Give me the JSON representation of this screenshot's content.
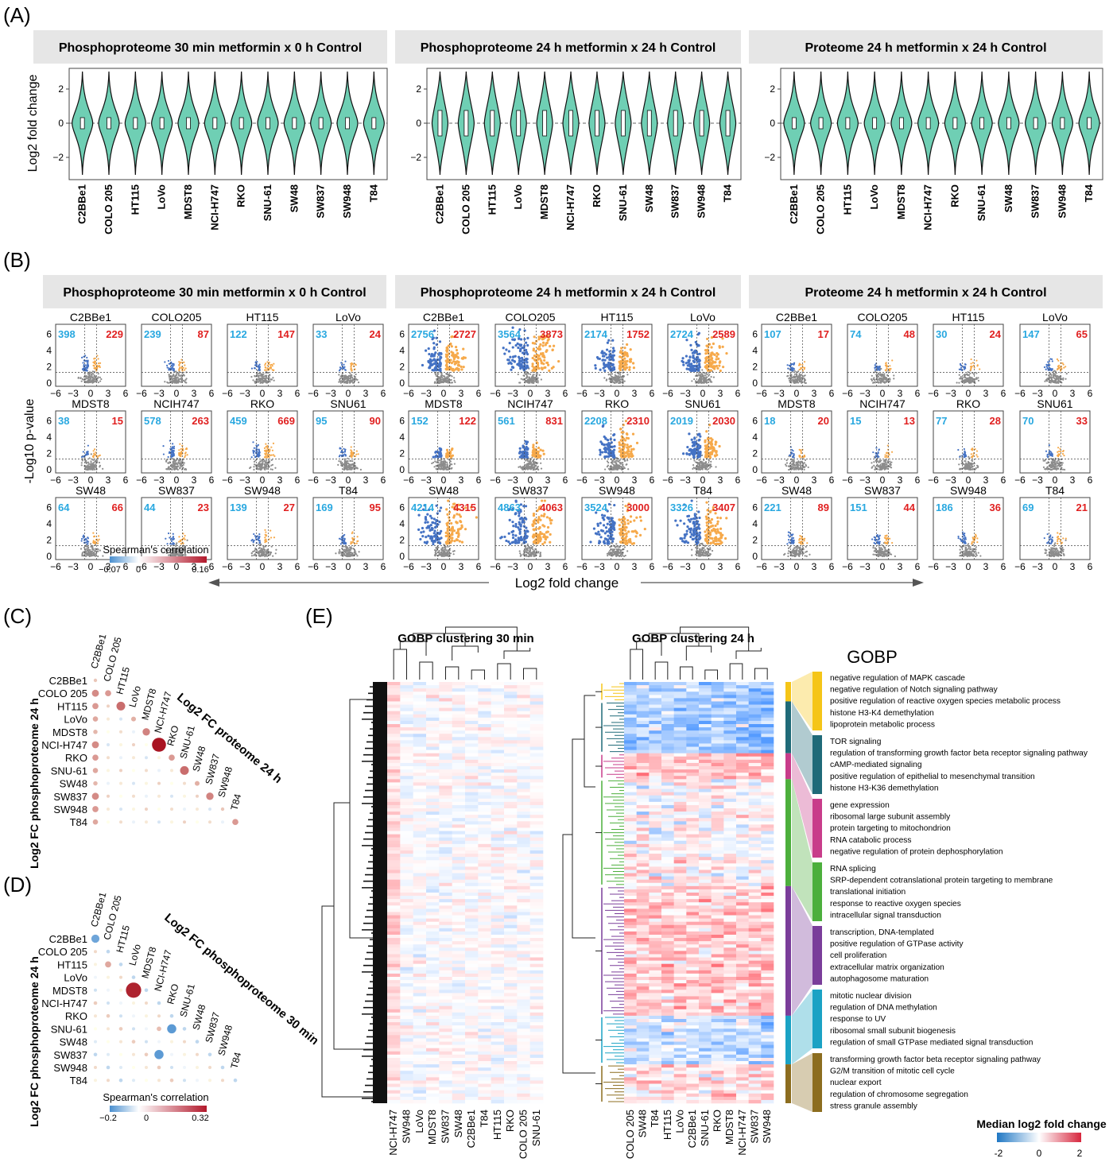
{
  "panel_labels": [
    "(A)",
    "(B)",
    "(C)",
    "(D)",
    "(E)"
  ],
  "panelA": {
    "facets": [
      "Phosphoproteome 30 min metformin x 0 h Control",
      "Phosphoproteome 24 h metformin x 24 h Control",
      "Proteome 24 h metformin x 24 h Control"
    ],
    "ylabel": "Log2 fold change",
    "yticks": [
      "2",
      "0",
      "−2"
    ],
    "cell_lines": [
      "C2BBe1",
      "COLO 205",
      "HT115",
      "LoVo",
      "MDST8",
      "NCI-H747",
      "RKO",
      "SNU-61",
      "SW48",
      "SW837",
      "SW948",
      "T84"
    ],
    "violin_color": "#6fcfb4"
  },
  "panelB": {
    "facets": [
      "Phosphoproteome 30 min metformin x 0 h Control",
      "Phosphoproteome 24 h metformin x 24 h Control",
      "Proteome 24 h metformin x 24 h Control"
    ],
    "cells": [
      "C2BBe1",
      "COLO205",
      "HT115",
      "LoVo",
      "MDST8",
      "NCIH747",
      "RKO",
      "SNU61",
      "SW48",
      "SW837",
      "SW948",
      "T84"
    ],
    "counts": [
      [
        [
          398,
          229
        ],
        [
          239,
          87
        ],
        [
          122,
          147
        ],
        [
          33,
          24
        ],
        [
          38,
          15
        ],
        [
          578,
          263
        ],
        [
          459,
          669
        ],
        [
          95,
          90
        ],
        [
          64,
          66
        ],
        [
          44,
          23
        ],
        [
          139,
          27
        ],
        [
          169,
          95
        ]
      ],
      [
        [
          2756,
          2727
        ],
        [
          3564,
          3873
        ],
        [
          2174,
          1752
        ],
        [
          2724,
          2589
        ],
        [
          152,
          122
        ],
        [
          561,
          831
        ],
        [
          2208,
          2310
        ],
        [
          2019,
          2030
        ],
        [
          4214,
          4315
        ],
        [
          4863,
          4063
        ],
        [
          3524,
          3000
        ],
        [
          3326,
          3407
        ]
      ],
      [
        [
          107,
          17
        ],
        [
          74,
          48
        ],
        [
          30,
          24
        ],
        [
          147,
          65
        ],
        [
          18,
          20
        ],
        [
          15,
          13
        ],
        [
          77,
          28
        ],
        [
          70,
          33
        ],
        [
          221,
          89
        ],
        [
          151,
          44
        ],
        [
          186,
          36
        ],
        [
          69,
          21
        ]
      ]
    ],
    "xticks": [
      "−6",
      "−3",
      "0",
      "3",
      "6"
    ],
    "yticks": [
      "6",
      "4",
      "2",
      "0"
    ],
    "ylabel": "-Log10 p-value",
    "xlabel": "Log2 fold change",
    "down_color": "#4472c4",
    "up_color": "#f6a94a",
    "ns_color": "#8c8c8c",
    "down_text_color": "#29a8e0",
    "up_text_color": "#e02020"
  },
  "panelC": {
    "row_labels": [
      "C2BBe1",
      "COLO 205",
      "HT115",
      "LoVo",
      "MDST8",
      "NCI-H747",
      "RKO",
      "SNU-61",
      "SW48",
      "SW837",
      "SW948",
      "T84"
    ],
    "col_labels": [
      "C2BBe1",
      "COLO 205",
      "HT115",
      "LoVo",
      "MDST8",
      "NCI-H747",
      "RKO",
      "SNU-61",
      "SW48",
      "SW837",
      "SW948",
      "T84"
    ],
    "row_axis": "Log2 FC phosphoproteome 24 h",
    "col_axis": "Log2 FC proteome 24 h",
    "legend_title": "Spearman's correlation",
    "legend_ticks": [
      "−0.07",
      "0",
      "0.16"
    ],
    "range": [
      -0.07,
      0.16
    ]
  },
  "panelD": {
    "row_labels": [
      "C2BBe1",
      "COLO 205",
      "HT115",
      "LoVo",
      "MDST8",
      "NCI-H747",
      "RKO",
      "SNU-61",
      "SW48",
      "SW837",
      "SW948",
      "T84"
    ],
    "col_labels": [
      "C2BBe1",
      "COLO 205",
      "HT115",
      "LoVo",
      "MDST8",
      "NCI-H747",
      "RKO",
      "SNU-61",
      "SW48",
      "SW837",
      "SW948",
      "T84"
    ],
    "row_axis": "Log2 FC phosphoproteome 24 h",
    "col_axis": "Log2 FC phosphoproteome 30 min",
    "legend_title": "Spearman's correlation",
    "legend_ticks": [
      "−0.2",
      "0",
      "0.32"
    ],
    "range": [
      -0.2,
      0.32
    ]
  },
  "panelE": {
    "title30": "GOBP clustering 30 min",
    "title24": "GOBP clustering 24 h",
    "cols30": [
      "NCI-H747",
      "SW948",
      "LoVo",
      "MDST8",
      "SW837",
      "SW48",
      "C2BBe1",
      "T84",
      "HT115",
      "RKO",
      "COLO 205",
      "SNU-61"
    ],
    "cols24": [
      "COLO 205",
      "SW48",
      "T84",
      "HT115",
      "LoVo",
      "C2BBe1",
      "SNU-61",
      "RKO",
      "MDST8",
      "NCI-H747",
      "SW837",
      "SW948"
    ],
    "gobp_title": "GOBP",
    "groups": [
      {
        "color": "#f5c518",
        "terms": [
          "negative regulation of MAPK cascade",
          "negative regulation of Notch signaling pathway",
          "positive regulation of reactive oxygen species metabolic process",
          "histone H3-K4 demethylation",
          "lipoprotein metabolic process"
        ]
      },
      {
        "color": "#1f6a78",
        "terms": [
          "TOR signaling",
          "regulation of transforming growth factor beta receptor signaling pathway",
          "cAMP-mediated signaling",
          "positive regulation of epithelial to mesenchymal transition",
          "histone H3-K36 demethylation"
        ]
      },
      {
        "color": "#c83c8a",
        "terms": [
          "gene expression",
          "ribosomal large subunit assembly",
          "protein targeting to mitochondrion",
          "RNA catabolic process",
          "negative regulation of protein dephosphorylation"
        ]
      },
      {
        "color": "#4caf3c",
        "terms": [
          "RNA splicing",
          "SRP-dependent cotranslational protein targeting to membrane",
          "translational initiation",
          "response to reactive oxygen species",
          "intracellular signal transduction"
        ]
      },
      {
        "color": "#7a3d9a",
        "terms": [
          "transcription, DNA-templated",
          "positive regulation of GTPase activity",
          "cell proliferation",
          "extracellular matrix organization",
          "autophagosome maturation"
        ]
      },
      {
        "color": "#1aa2c4",
        "terms": [
          "mitotic nuclear division",
          "regulation of DNA methylation",
          "response to UV",
          "ribosomal small subunit biogenesis",
          "regulation of small GTPase mediated signal transduction"
        ]
      },
      {
        "color": "#8c6d1f",
        "terms": [
          "transforming growth factor beta receptor signaling pathway",
          "G2/M transition of mitotic cell cycle",
          "nuclear export",
          "regulation of chromosome segregation",
          "stress granule assembly"
        ]
      }
    ],
    "legend_title": "Median log2 fold change",
    "legend_ticks": [
      "-2",
      "0",
      "2"
    ]
  }
}
